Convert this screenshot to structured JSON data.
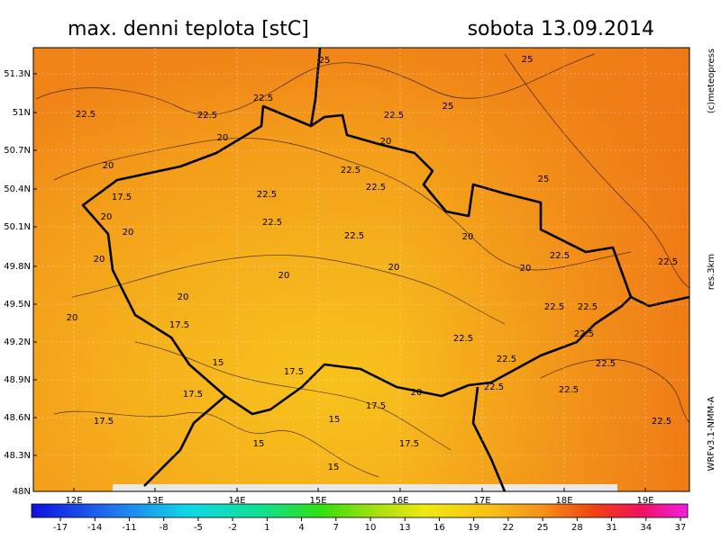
{
  "title": "max. denni teplota [stC]",
  "date": "sobota 13.09.2014",
  "credits": [
    "(c)meteopress",
    "res.3km",
    "WRFv3.1-NMM-A"
  ],
  "lat_labels": [
    "51.3N",
    "51N",
    "50.7N",
    "50.4N",
    "50.1N",
    "49.8N",
    "49.5N",
    "49.2N",
    "48.9N",
    "48.6N",
    "48.3N",
    "48N"
  ],
  "lon_labels": [
    "12E",
    "13E",
    "14E",
    "15E",
    "16E",
    "17E",
    "18E",
    "19E"
  ],
  "colorbar_ticks": [
    -17,
    -14,
    -11,
    -8,
    -5,
    -2,
    1,
    4,
    7,
    10,
    13,
    16,
    19,
    22,
    25,
    28,
    31,
    34,
    37
  ],
  "contour_labels": [
    "25",
    "25",
    "25",
    "25",
    "22.5",
    "22.5",
    "22.5",
    "22.5",
    "20",
    "20",
    "20",
    "22.5",
    "17.5",
    "22.5",
    "22.5",
    "20",
    "22.5",
    "22.5",
    "20",
    "20",
    "20",
    "20",
    "20",
    "22.5",
    "22.5",
    "20",
    "20",
    "20",
    "22.5",
    "22.5",
    "17.5",
    "22.5",
    "22.5",
    "22.5",
    "22.5",
    "15",
    "17.5",
    "20",
    "22.5",
    "22.5",
    "17.5",
    "17.5",
    "15",
    "17.5",
    "22.5",
    "15",
    "17.5",
    "15"
  ]
}
